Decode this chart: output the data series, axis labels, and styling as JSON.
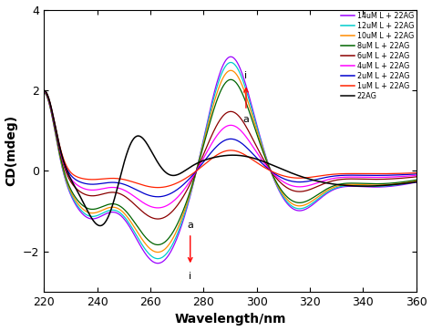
{
  "xlabel": "Wavelength/nm",
  "ylabel": "CD(mdeg)",
  "xlim": [
    220,
    360
  ],
  "ylim": [
    -3,
    4
  ],
  "xticks": [
    220,
    240,
    260,
    280,
    300,
    320,
    340,
    360
  ],
  "yticks": [
    -2,
    0,
    2,
    4
  ],
  "legend_labels": [
    "14uM L + 22AG",
    "12uM L + 22AG",
    "10uM L + 22AG",
    "8uM L + 22AG",
    "6uM L + 22AG",
    "4uM L + 22AG",
    "2uM L + 22AG",
    "1uM L + 22AG",
    "22AG"
  ],
  "line_colors": [
    "#9B00FF",
    "#00CCCC",
    "#FF8C00",
    "#006400",
    "#8B0000",
    "#FF00FF",
    "#0000CD",
    "#FF2200",
    "#000000"
  ],
  "scales": [
    1.0,
    0.95,
    0.88,
    0.8,
    0.52,
    0.4,
    0.28,
    0.18
  ]
}
